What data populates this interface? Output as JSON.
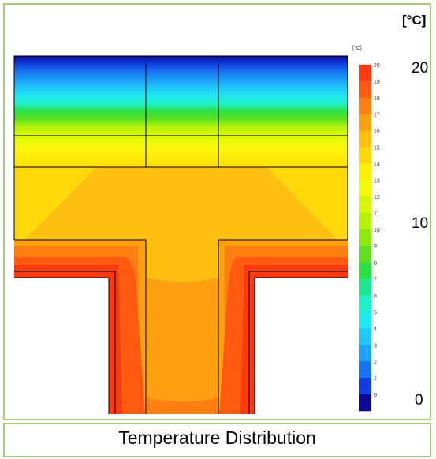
{
  "unit": "[°C]",
  "legend": {
    "unit": "[°C]",
    "min": 0,
    "max": 20,
    "labels": [
      "20",
      "19",
      "18",
      "17",
      "16",
      "15",
      "14",
      "13",
      "12",
      "11",
      "10",
      "9",
      "8",
      "7",
      "6",
      "5",
      "4",
      "3",
      "2",
      "1",
      "0"
    ],
    "colors": {
      "20": "#ff3a10",
      "19": "#ff5a10",
      "18": "#ff7f12",
      "17": "#ffa012",
      "16": "#ffbf10",
      "15": "#ffd80c",
      "14": "#fff00a",
      "13": "#f2fa08",
      "12": "#d6f808",
      "11": "#b5f20a",
      "10": "#8ee810",
      "9": "#60e020",
      "8": "#2ee040",
      "7": "#20e890",
      "6": "#1ef0c8",
      "5": "#20e8f0",
      "4": "#20c8f8",
      "3": "#1ca2f8",
      "2": "#1674f0",
      "1": "#103ee0",
      "0": "#0a0a96"
    }
  },
  "scale_labels": {
    "top": "20",
    "middle": "10",
    "bottom": "0"
  },
  "caption": "Temperature Distribution"
}
